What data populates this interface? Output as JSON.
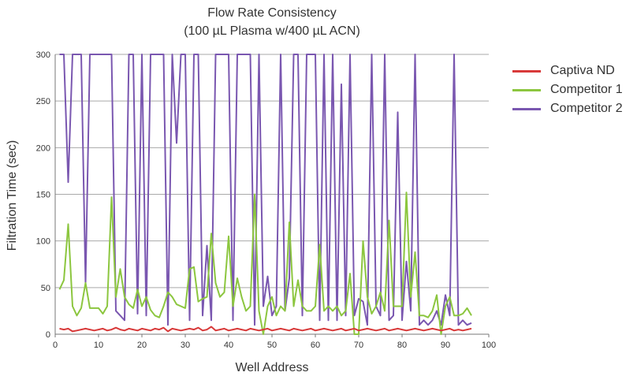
{
  "chart_data": {
    "type": "line",
    "title": "Flow Rate Consistency",
    "subtitle": "(100 µL Plasma w/400 µL ACN)",
    "xlabel": "Well Address",
    "ylabel": "Filtration Time (sec)",
    "xlim": [
      0,
      100
    ],
    "ylim": [
      0,
      300
    ],
    "xticks": [
      0,
      10,
      20,
      30,
      40,
      50,
      60,
      70,
      80,
      90,
      100
    ],
    "yticks": [
      0,
      50,
      100,
      150,
      200,
      250,
      300
    ],
    "grid": "horizontal",
    "legend_position": "right",
    "x": [
      1,
      2,
      3,
      4,
      5,
      6,
      7,
      8,
      9,
      10,
      11,
      12,
      13,
      14,
      15,
      16,
      17,
      18,
      19,
      20,
      21,
      22,
      23,
      24,
      25,
      26,
      27,
      28,
      29,
      30,
      31,
      32,
      33,
      34,
      35,
      36,
      37,
      38,
      39,
      40,
      41,
      42,
      43,
      44,
      45,
      46,
      47,
      48,
      49,
      50,
      51,
      52,
      53,
      54,
      55,
      56,
      57,
      58,
      59,
      60,
      61,
      62,
      63,
      64,
      65,
      66,
      67,
      68,
      69,
      70,
      71,
      72,
      73,
      74,
      75,
      76,
      77,
      78,
      79,
      80,
      81,
      82,
      83,
      84,
      85,
      86,
      87,
      88,
      89,
      90,
      91,
      92,
      93,
      94,
      95,
      96
    ],
    "series": [
      {
        "name": "Captiva ND",
        "color": "#d83a3a",
        "values": [
          6,
          5,
          6,
          3,
          4,
          5,
          6,
          5,
          4,
          5,
          6,
          4,
          5,
          7,
          5,
          4,
          6,
          5,
          4,
          6,
          5,
          4,
          6,
          5,
          7,
          3,
          6,
          5,
          4,
          5,
          6,
          5,
          7,
          4,
          5,
          8,
          4,
          5,
          6,
          4,
          5,
          6,
          5,
          4,
          6,
          5,
          4,
          5,
          6,
          4,
          5,
          6,
          5,
          4,
          6,
          5,
          4,
          5,
          6,
          4,
          5,
          6,
          5,
          4,
          5,
          6,
          4,
          5,
          6,
          4,
          5,
          6,
          5,
          4,
          5,
          6,
          4,
          5,
          6,
          5,
          4,
          5,
          6,
          5,
          4,
          5,
          6,
          5,
          4,
          5,
          6,
          4,
          5,
          4,
          5,
          6
        ]
      },
      {
        "name": "Competitor 1",
        "color": "#8cc63f",
        "values": [
          48,
          58,
          118,
          30,
          20,
          28,
          55,
          28,
          28,
          28,
          22,
          30,
          147,
          40,
          70,
          40,
          32,
          28,
          48,
          30,
          40,
          26,
          20,
          18,
          30,
          45,
          40,
          32,
          30,
          28,
          70,
          72,
          35,
          38,
          40,
          108,
          55,
          40,
          45,
          105,
          30,
          60,
          40,
          25,
          30,
          150,
          25,
          0,
          30,
          40,
          20,
          30,
          25,
          120,
          30,
          58,
          30,
          25,
          25,
          30,
          96,
          25,
          30,
          25,
          30,
          20,
          25,
          65,
          0,
          0,
          100,
          40,
          22,
          30,
          45,
          25,
          122,
          30,
          30,
          30,
          152,
          40,
          88,
          20,
          20,
          18,
          25,
          42,
          0,
          30,
          40,
          20,
          20,
          22,
          28,
          20
        ]
      },
      {
        "name": "Competitor 2",
        "color": "#7a57b0",
        "values": [
          300,
          300,
          163,
          300,
          300,
          300,
          55,
          300,
          300,
          300,
          300,
          300,
          300,
          25,
          20,
          15,
          300,
          300,
          22,
          300,
          20,
          300,
          300,
          300,
          300,
          10,
          300,
          205,
          300,
          300,
          15,
          300,
          300,
          20,
          95,
          15,
          300,
          300,
          300,
          300,
          15,
          300,
          300,
          300,
          300,
          10,
          300,
          30,
          62,
          20,
          30,
          300,
          25,
          60,
          300,
          300,
          20,
          300,
          300,
          300,
          15,
          300,
          15,
          300,
          15,
          268,
          20,
          300,
          20,
          38,
          35,
          10,
          300,
          30,
          20,
          300,
          15,
          20,
          238,
          15,
          78,
          25,
          300,
          10,
          15,
          10,
          15,
          25,
          10,
          42,
          20,
          300,
          10,
          15,
          10,
          12
        ]
      }
    ]
  }
}
